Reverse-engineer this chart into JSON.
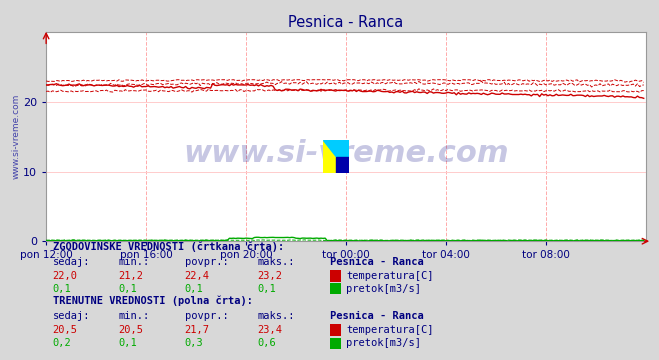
{
  "title": "Pesnica - Ranca",
  "bg_color": "#d8d8d8",
  "plot_bg_color": "#ffffff",
  "grid_color_v": "#ffaaaa",
  "grid_color_h": "#ffcccc",
  "title_color": "#000080",
  "axis_label_color": "#000080",
  "x_tick_labels": [
    "pon 12:00",
    "pon 16:00",
    "pon 20:00",
    "tor 00:00",
    "tor 04:00",
    "tor 08:00"
  ],
  "x_tick_positions": [
    0,
    48,
    96,
    144,
    192,
    240
  ],
  "n_points": 288,
  "ylim": [
    0,
    30
  ],
  "yticks": [
    0,
    10,
    20
  ],
  "temp_color": "#cc0000",
  "flow_color": "#00aa00",
  "temp_hist_cur": 22.0,
  "temp_hist_min": 21.2,
  "temp_hist_avg": 22.4,
  "temp_hist_max": 23.2,
  "flow_hist_cur": 0.1,
  "flow_hist_min": 0.1,
  "flow_hist_avg": 0.1,
  "flow_hist_max": 0.1,
  "temp_cur_val": 20.5,
  "temp_cur_min": 20.5,
  "temp_cur_avg": 21.7,
  "temp_cur_max": 23.4,
  "flow_cur_val": 0.2,
  "flow_cur_min": 0.1,
  "flow_cur_avg": 0.3,
  "flow_cur_max": 0.6,
  "watermark": "www.si-vreme.com",
  "watermark_color": "#000080",
  "watermark_alpha": 0.22,
  "ylabel_text": "www.si-vreme.com",
  "ylabel_color": "#4444aa"
}
